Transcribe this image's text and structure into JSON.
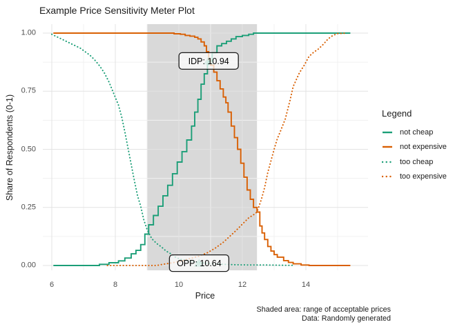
{
  "title": "Example Price Sensitivity Meter Plot",
  "legend": {
    "title": "Legend"
  },
  "caption": {
    "line1": "Shaded area: range of acceptable prices",
    "line2": "Data: Randomly generated"
  },
  "colors": {
    "teal": "#1B9E77",
    "orange": "#D95F02",
    "shaded_area": "#D9D9D9",
    "grid_major": "#E3E3E3",
    "grid_minor": "#F0F0F0",
    "axis_text": "#4D4D4D",
    "marker_fill": "#1B9E77",
    "label_border": "#1A1A1A"
  },
  "chart_data": {
    "type": "line",
    "title": "Example Price Sensitivity Meter Plot",
    "xlabel": "Price",
    "ylabel": "Share of Respondents (0-1)",
    "xlim": [
      5.7,
      16.0
    ],
    "ylim": [
      0,
      1
    ],
    "grid": true,
    "legend_position": "right",
    "x_ticks": [
      6,
      8,
      10,
      12,
      14
    ],
    "x_tick_labels": [
      "6",
      "8",
      "10",
      "12",
      "14"
    ],
    "x_minor_ticks": [
      7,
      9,
      11,
      13,
      15
    ],
    "y_ticks": [
      0,
      0.25,
      0.5,
      0.75,
      1
    ],
    "y_tick_labels": [
      "0.00",
      "0.25",
      "0.50",
      "0.75",
      "1.00"
    ],
    "y_minor_ticks": [
      0.125,
      0.375,
      0.625,
      0.875
    ],
    "shaded_area": {
      "x_from": 9.0,
      "x_to": 12.46,
      "meaning": "range of acceptable prices"
    },
    "annotations": [
      {
        "id": "idp",
        "label": "IDP: 10.94",
        "x": 10.94,
        "y": 0.88
      },
      {
        "id": "opp",
        "label": "OPP: 10.64",
        "x": 10.64,
        "y": 0.01
      }
    ],
    "series": [
      {
        "name": "not cheap",
        "style": "solid",
        "color": "#1B9E77",
        "points": [
          [
            6.05,
            0
          ],
          [
            7.4,
            0
          ],
          [
            7.5,
            0.005
          ],
          [
            7.8,
            0.012
          ],
          [
            8.1,
            0.02
          ],
          [
            8.3,
            0.032
          ],
          [
            8.5,
            0.05
          ],
          [
            8.65,
            0.065
          ],
          [
            8.8,
            0.09
          ],
          [
            8.93,
            0.135
          ],
          [
            9.05,
            0.175
          ],
          [
            9.2,
            0.215
          ],
          [
            9.35,
            0.255
          ],
          [
            9.5,
            0.3
          ],
          [
            9.65,
            0.345
          ],
          [
            9.8,
            0.395
          ],
          [
            9.95,
            0.445
          ],
          [
            10.1,
            0.49
          ],
          [
            10.25,
            0.54
          ],
          [
            10.4,
            0.6
          ],
          [
            10.5,
            0.66
          ],
          [
            10.6,
            0.715
          ],
          [
            10.7,
            0.78
          ],
          [
            10.8,
            0.825
          ],
          [
            10.9,
            0.865
          ],
          [
            10.94,
            0.88
          ],
          [
            11.05,
            0.915
          ],
          [
            11.2,
            0.945
          ],
          [
            11.35,
            0.955
          ],
          [
            11.5,
            0.965
          ],
          [
            11.65,
            0.975
          ],
          [
            11.8,
            0.985
          ],
          [
            12.0,
            0.99
          ],
          [
            12.2,
            0.995
          ],
          [
            12.35,
            1.0
          ],
          [
            15.4,
            1.0
          ]
        ]
      },
      {
        "name": "not expensive",
        "style": "solid",
        "color": "#D95F02",
        "points": [
          [
            6.05,
            1.0
          ],
          [
            9.75,
            1.0
          ],
          [
            9.85,
            0.997
          ],
          [
            10.05,
            0.995
          ],
          [
            10.2,
            0.99
          ],
          [
            10.35,
            0.987
          ],
          [
            10.5,
            0.982
          ],
          [
            10.6,
            0.975
          ],
          [
            10.7,
            0.962
          ],
          [
            10.8,
            0.945
          ],
          [
            10.87,
            0.92
          ],
          [
            10.94,
            0.885
          ],
          [
            11.0,
            0.862
          ],
          [
            11.1,
            0.832
          ],
          [
            11.2,
            0.795
          ],
          [
            11.3,
            0.76
          ],
          [
            11.4,
            0.725
          ],
          [
            11.48,
            0.7
          ],
          [
            11.55,
            0.66
          ],
          [
            11.65,
            0.6
          ],
          [
            11.75,
            0.55
          ],
          [
            11.85,
            0.5
          ],
          [
            11.95,
            0.44
          ],
          [
            12.05,
            0.38
          ],
          [
            12.15,
            0.325
          ],
          [
            12.25,
            0.285
          ],
          [
            12.35,
            0.25
          ],
          [
            12.46,
            0.23
          ],
          [
            12.55,
            0.17
          ],
          [
            12.62,
            0.14
          ],
          [
            12.7,
            0.112
          ],
          [
            12.8,
            0.082
          ],
          [
            12.9,
            0.062
          ],
          [
            13.0,
            0.047
          ],
          [
            13.1,
            0.036
          ],
          [
            13.3,
            0.021
          ],
          [
            13.45,
            0.013
          ],
          [
            13.6,
            0.007
          ],
          [
            13.85,
            0.002
          ],
          [
            14.1,
            0.0
          ],
          [
            15.4,
            0.0
          ]
        ]
      },
      {
        "name": "too cheap",
        "style": "dotted",
        "color": "#1B9E77",
        "points": [
          [
            6.0,
            0.995
          ],
          [
            6.15,
            0.985
          ],
          [
            6.3,
            0.975
          ],
          [
            6.45,
            0.965
          ],
          [
            6.6,
            0.955
          ],
          [
            6.75,
            0.945
          ],
          [
            6.9,
            0.935
          ],
          [
            7.05,
            0.92
          ],
          [
            7.2,
            0.905
          ],
          [
            7.35,
            0.885
          ],
          [
            7.5,
            0.86
          ],
          [
            7.65,
            0.83
          ],
          [
            7.8,
            0.79
          ],
          [
            7.95,
            0.74
          ],
          [
            8.1,
            0.69
          ],
          [
            8.2,
            0.64
          ],
          [
            8.3,
            0.575
          ],
          [
            8.4,
            0.505
          ],
          [
            8.5,
            0.435
          ],
          [
            8.6,
            0.365
          ],
          [
            8.7,
            0.3
          ],
          [
            8.8,
            0.255
          ],
          [
            8.9,
            0.195
          ],
          [
            9.0,
            0.155
          ],
          [
            9.15,
            0.115
          ],
          [
            9.3,
            0.095
          ],
          [
            9.45,
            0.08
          ],
          [
            9.6,
            0.062
          ],
          [
            9.75,
            0.05
          ],
          [
            9.9,
            0.035
          ],
          [
            10.05,
            0.027
          ],
          [
            10.3,
            0.02
          ],
          [
            10.64,
            0.013
          ],
          [
            11.0,
            0.008
          ],
          [
            11.4,
            0.005
          ],
          [
            11.8,
            0.003
          ],
          [
            12.3,
            0.002
          ],
          [
            12.8,
            0.002
          ],
          [
            13.3,
            0.001
          ],
          [
            13.65,
            0.001
          ]
        ]
      },
      {
        "name": "too expensive",
        "style": "dotted",
        "color": "#D95F02",
        "points": [
          [
            7.75,
            0.0
          ],
          [
            9.3,
            0.0
          ],
          [
            9.5,
            0.005
          ],
          [
            9.8,
            0.012
          ],
          [
            10.1,
            0.02
          ],
          [
            10.35,
            0.03
          ],
          [
            10.64,
            0.04
          ],
          [
            10.9,
            0.055
          ],
          [
            11.15,
            0.075
          ],
          [
            11.4,
            0.1
          ],
          [
            11.6,
            0.125
          ],
          [
            11.8,
            0.15
          ],
          [
            12.0,
            0.178
          ],
          [
            12.2,
            0.205
          ],
          [
            12.35,
            0.218
          ],
          [
            12.46,
            0.23
          ],
          [
            12.6,
            0.285
          ],
          [
            12.7,
            0.335
          ],
          [
            12.8,
            0.4
          ],
          [
            12.9,
            0.45
          ],
          [
            13.0,
            0.5
          ],
          [
            13.1,
            0.545
          ],
          [
            13.2,
            0.578
          ],
          [
            13.35,
            0.63
          ],
          [
            13.5,
            0.71
          ],
          [
            13.6,
            0.77
          ],
          [
            13.7,
            0.8
          ],
          [
            13.8,
            0.83
          ],
          [
            13.95,
            0.862
          ],
          [
            14.1,
            0.9
          ],
          [
            14.25,
            0.918
          ],
          [
            14.4,
            0.932
          ],
          [
            14.55,
            0.952
          ],
          [
            14.7,
            0.975
          ],
          [
            14.85,
            0.99
          ],
          [
            15.0,
            0.998
          ],
          [
            15.3,
            1.0
          ]
        ]
      }
    ]
  }
}
